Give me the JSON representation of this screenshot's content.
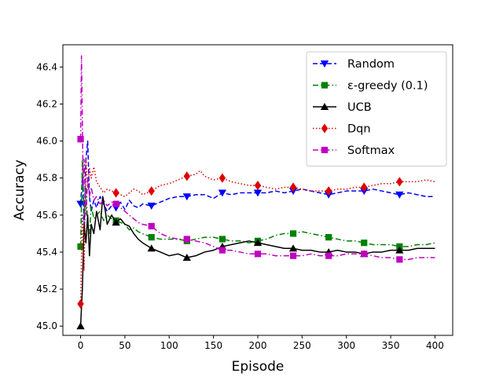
{
  "chart_data": {
    "type": "line",
    "xlabel": "Episode",
    "ylabel": "Accuracy",
    "xlim": [
      -20,
      420
    ],
    "ylim": [
      44.95,
      46.52
    ],
    "x_ticks": [
      0,
      50,
      100,
      150,
      200,
      250,
      300,
      350,
      400
    ],
    "y_ticks": [
      45.0,
      45.2,
      45.4,
      45.6,
      45.8,
      46.0,
      46.2,
      46.4
    ],
    "grid": false,
    "legend_position": "top-right",
    "series": [
      {
        "name": "Random",
        "color": "#0000ff",
        "dash": "dashed",
        "marker": "triangle-down",
        "x": [
          0,
          2,
          4,
          6,
          8,
          10,
          12,
          15,
          18,
          22,
          26,
          30,
          35,
          40,
          45,
          50,
          55,
          60,
          65,
          70,
          80,
          90,
          100,
          110,
          120,
          130,
          140,
          150,
          160,
          170,
          180,
          190,
          200,
          210,
          220,
          230,
          240,
          250,
          260,
          270,
          280,
          290,
          300,
          310,
          320,
          330,
          340,
          350,
          360,
          370,
          380,
          390,
          400
        ],
        "y": [
          45.66,
          45.8,
          45.55,
          45.9,
          46.0,
          45.7,
          45.62,
          45.68,
          45.64,
          45.7,
          45.66,
          45.62,
          45.65,
          45.64,
          45.67,
          45.63,
          45.68,
          45.65,
          45.64,
          45.66,
          45.65,
          45.67,
          45.69,
          45.7,
          45.7,
          45.71,
          45.71,
          45.69,
          45.72,
          45.71,
          45.72,
          45.72,
          45.72,
          45.72,
          45.73,
          45.72,
          45.73,
          45.74,
          45.73,
          45.72,
          45.71,
          45.72,
          45.73,
          45.73,
          45.73,
          45.74,
          45.73,
          45.72,
          45.71,
          45.72,
          45.71,
          45.7,
          45.7
        ],
        "marker_x": [
          0,
          40,
          80,
          120,
          160,
          200,
          240,
          280,
          320,
          360
        ]
      },
      {
        "name": "ε-greedy (0.1)",
        "color": "#008000",
        "dash": "dashdot",
        "marker": "square",
        "x": [
          0,
          2,
          4,
          6,
          8,
          10,
          12,
          15,
          18,
          22,
          26,
          30,
          35,
          40,
          45,
          50,
          55,
          60,
          65,
          70,
          80,
          90,
          100,
          110,
          120,
          130,
          140,
          150,
          160,
          170,
          180,
          190,
          200,
          210,
          220,
          230,
          240,
          250,
          260,
          270,
          280,
          290,
          300,
          310,
          320,
          330,
          340,
          350,
          360,
          370,
          380,
          390,
          400
        ],
        "y": [
          45.43,
          45.9,
          45.6,
          45.75,
          45.55,
          45.5,
          45.65,
          45.58,
          45.6,
          45.62,
          45.57,
          45.6,
          45.58,
          45.57,
          45.56,
          45.55,
          45.52,
          45.53,
          45.51,
          45.5,
          45.48,
          45.47,
          45.47,
          45.47,
          45.46,
          45.47,
          45.48,
          45.48,
          45.47,
          45.46,
          45.46,
          45.45,
          45.46,
          45.47,
          45.49,
          45.5,
          45.5,
          45.51,
          45.5,
          45.49,
          45.48,
          45.47,
          45.46,
          45.46,
          45.45,
          45.44,
          45.44,
          45.44,
          45.43,
          45.43,
          45.44,
          45.44,
          45.45
        ],
        "marker_x": [
          0,
          40,
          80,
          120,
          160,
          200,
          240,
          280,
          320,
          360
        ]
      },
      {
        "name": "UCB",
        "color": "#000000",
        "dash": "solid",
        "marker": "triangle-up",
        "x": [
          0,
          2,
          4,
          6,
          8,
          10,
          12,
          15,
          18,
          22,
          25,
          28,
          30,
          35,
          40,
          45,
          50,
          55,
          60,
          65,
          70,
          80,
          90,
          100,
          110,
          120,
          130,
          140,
          150,
          160,
          170,
          180,
          190,
          200,
          210,
          220,
          230,
          240,
          250,
          260,
          270,
          280,
          290,
          300,
          310,
          320,
          330,
          340,
          350,
          360,
          370,
          380,
          390,
          400
        ],
        "y": [
          45.0,
          45.2,
          45.55,
          45.45,
          45.6,
          45.38,
          45.55,
          45.5,
          45.62,
          45.52,
          45.7,
          45.62,
          45.55,
          45.6,
          45.56,
          45.58,
          45.55,
          45.54,
          45.5,
          45.47,
          45.45,
          45.42,
          45.4,
          45.38,
          45.39,
          45.37,
          45.38,
          45.4,
          45.41,
          45.43,
          45.44,
          45.45,
          45.46,
          45.45,
          45.44,
          45.43,
          45.42,
          45.42,
          45.41,
          45.41,
          45.4,
          45.4,
          45.41,
          45.4,
          45.4,
          45.39,
          45.4,
          45.4,
          45.41,
          45.41,
          45.41,
          45.42,
          45.42,
          45.42
        ],
        "marker_x": [
          0,
          40,
          80,
          120,
          160,
          200,
          240,
          280,
          320,
          360
        ]
      },
      {
        "name": "Dqn",
        "color": "#dd0000",
        "dash": "dotted",
        "marker": "diamond",
        "x": [
          0,
          2,
          4,
          6,
          8,
          10,
          12,
          15,
          18,
          22,
          26,
          30,
          35,
          40,
          45,
          50,
          55,
          60,
          65,
          70,
          80,
          90,
          100,
          110,
          120,
          130,
          135,
          140,
          150,
          160,
          170,
          180,
          190,
          200,
          210,
          220,
          230,
          240,
          250,
          260,
          270,
          280,
          290,
          300,
          310,
          320,
          330,
          340,
          350,
          360,
          370,
          380,
          390,
          400
        ],
        "y": [
          45.12,
          45.6,
          45.3,
          45.9,
          45.75,
          45.85,
          45.8,
          45.86,
          45.78,
          45.75,
          45.72,
          45.74,
          45.73,
          45.72,
          45.71,
          45.7,
          45.72,
          45.74,
          45.73,
          45.71,
          45.73,
          45.76,
          45.77,
          45.79,
          45.81,
          45.82,
          45.84,
          45.81,
          45.79,
          45.8,
          45.78,
          45.77,
          45.76,
          45.76,
          45.75,
          45.74,
          45.75,
          45.75,
          45.74,
          45.73,
          45.73,
          45.73,
          45.74,
          45.74,
          45.75,
          45.75,
          45.76,
          45.77,
          45.77,
          45.78,
          45.78,
          45.78,
          45.79,
          45.78
        ],
        "marker_x": [
          0,
          40,
          80,
          120,
          160,
          200,
          240,
          280,
          320,
          360
        ]
      },
      {
        "name": "Softmax",
        "color": "#bf00bf",
        "dash": "dashdot",
        "marker": "square",
        "x": [
          0,
          1,
          2,
          3,
          4,
          6,
          8,
          10,
          12,
          15,
          18,
          22,
          26,
          30,
          35,
          40,
          45,
          50,
          55,
          60,
          65,
          70,
          80,
          90,
          100,
          110,
          120,
          130,
          140,
          150,
          160,
          170,
          180,
          190,
          200,
          210,
          220,
          230,
          240,
          250,
          260,
          270,
          280,
          290,
          300,
          310,
          320,
          330,
          340,
          350,
          360,
          370,
          380,
          390,
          400
        ],
        "y": [
          46.01,
          46.46,
          46.1,
          45.75,
          45.9,
          45.6,
          45.8,
          45.7,
          45.75,
          45.68,
          45.7,
          45.66,
          45.68,
          45.65,
          45.67,
          45.66,
          45.64,
          45.62,
          45.6,
          45.58,
          45.56,
          45.55,
          45.54,
          45.5,
          45.48,
          45.47,
          45.47,
          45.46,
          45.45,
          45.43,
          45.41,
          45.41,
          45.4,
          45.39,
          45.39,
          45.39,
          45.38,
          45.38,
          45.38,
          45.38,
          45.39,
          45.38,
          45.38,
          45.38,
          45.39,
          45.39,
          45.39,
          45.38,
          45.37,
          45.37,
          45.36,
          45.36,
          45.37,
          45.37,
          45.37
        ],
        "marker_x": [
          0,
          40,
          80,
          120,
          160,
          200,
          240,
          280,
          320,
          360
        ]
      }
    ]
  }
}
